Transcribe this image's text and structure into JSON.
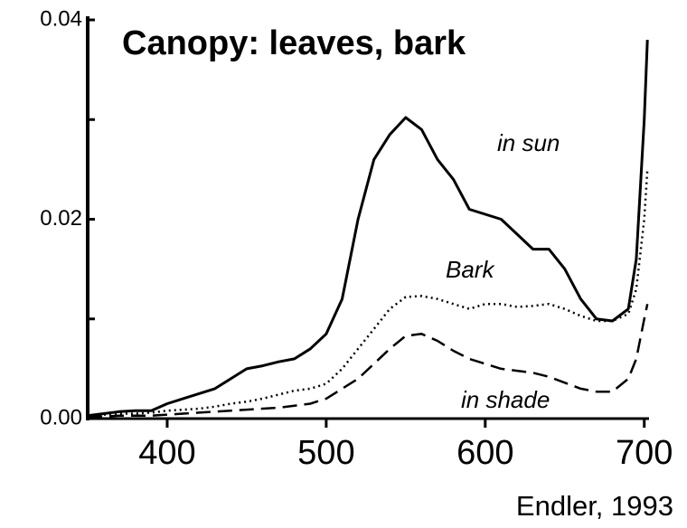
{
  "chart_data": {
    "type": "line",
    "title": "Canopy: leaves, bark",
    "source": "Endler, 1993",
    "x": [
      350,
      360,
      370,
      380,
      390,
      400,
      410,
      420,
      430,
      440,
      450,
      460,
      470,
      480,
      490,
      500,
      510,
      520,
      530,
      540,
      550,
      560,
      570,
      580,
      590,
      600,
      610,
      620,
      630,
      640,
      650,
      660,
      670,
      680,
      690,
      695,
      700,
      702
    ],
    "series": [
      {
        "name": "in sun",
        "color": "#000000",
        "line_style": "solid",
        "values": [
          0.0003,
          0.0005,
          0.0007,
          0.0008,
          0.0008,
          0.0015,
          0.002,
          0.0025,
          0.003,
          0.004,
          0.005,
          0.0053,
          0.0057,
          0.006,
          0.007,
          0.0085,
          0.012,
          0.02,
          0.026,
          0.0285,
          0.0302,
          0.029,
          0.026,
          0.024,
          0.021,
          0.0205,
          0.02,
          0.0185,
          0.017,
          0.017,
          0.015,
          0.012,
          0.01,
          0.0098,
          0.011,
          0.016,
          0.03,
          0.038
        ]
      },
      {
        "name": "Bark",
        "color": "#000000",
        "line_style": "dotted",
        "values": [
          0.0003,
          0.0004,
          0.0005,
          0.0005,
          0.0006,
          0.0008,
          0.0009,
          0.001,
          0.0012,
          0.0015,
          0.0017,
          0.002,
          0.0024,
          0.0028,
          0.003,
          0.0035,
          0.005,
          0.007,
          0.009,
          0.011,
          0.0122,
          0.0123,
          0.012,
          0.0115,
          0.011,
          0.0115,
          0.0115,
          0.0112,
          0.0113,
          0.0115,
          0.011,
          0.0103,
          0.0098,
          0.0098,
          0.0105,
          0.013,
          0.02,
          0.025
        ]
      },
      {
        "name": "in shade",
        "color": "#000000",
        "line_style": "dashed",
        "values": [
          0.0002,
          0.0002,
          0.0003,
          0.0003,
          0.0003,
          0.0004,
          0.0005,
          0.0006,
          0.0007,
          0.0008,
          0.0009,
          0.001,
          0.0011,
          0.0013,
          0.0015,
          0.002,
          0.003,
          0.004,
          0.0055,
          0.007,
          0.0083,
          0.0085,
          0.0078,
          0.0068,
          0.006,
          0.0055,
          0.005,
          0.0048,
          0.0046,
          0.0042,
          0.0036,
          0.003,
          0.0027,
          0.0027,
          0.004,
          0.006,
          0.01,
          0.0115
        ]
      }
    ],
    "xlim": [
      350,
      703
    ],
    "xticks": [
      400,
      500,
      600,
      700
    ],
    "ylim": [
      0,
      0.04
    ],
    "yticks": [
      {
        "value": 0,
        "label": "0.00"
      },
      0.02,
      0.04
    ],
    "minor_yticks": [
      0.01,
      0.03
    ],
    "grid": false
  }
}
